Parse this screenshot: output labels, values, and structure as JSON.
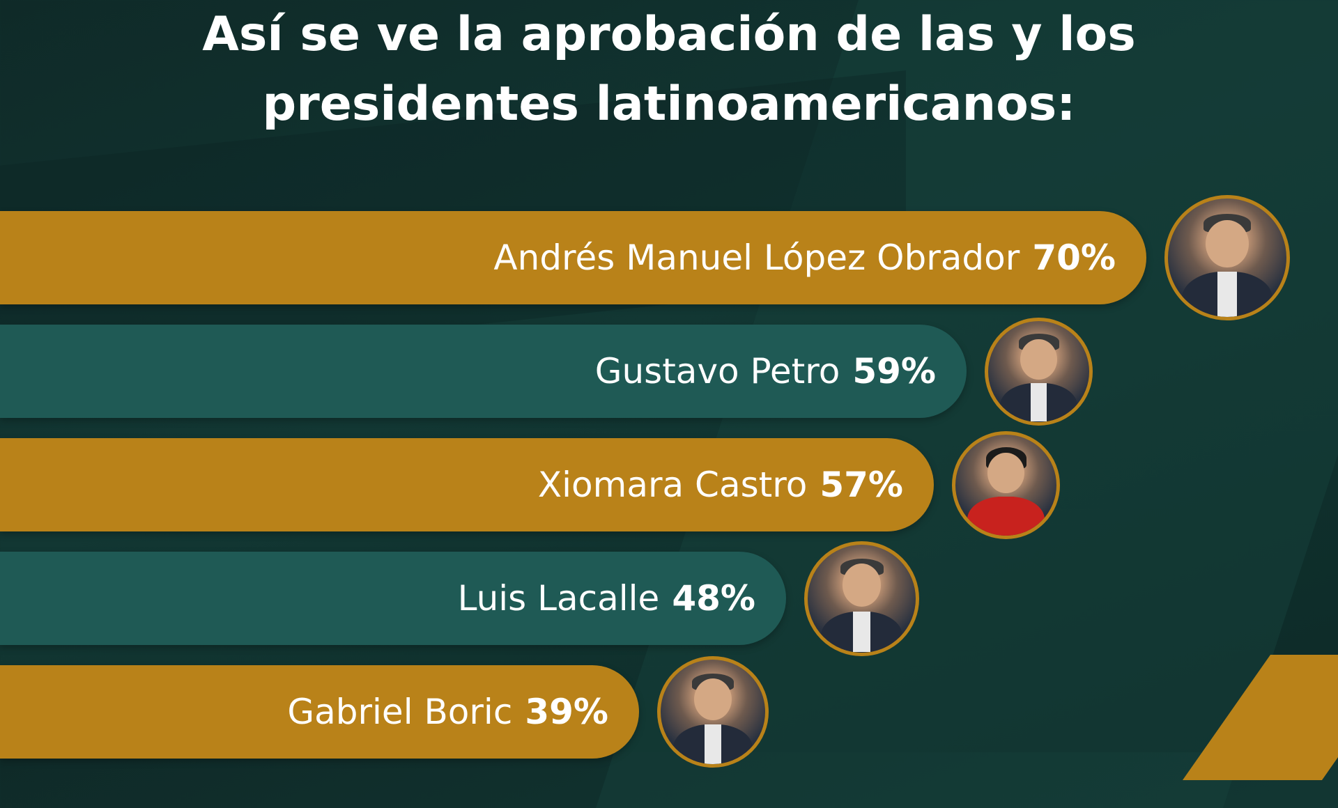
{
  "title": {
    "line1": "Así se ve la aprobación de las  y los",
    "line2": "presidentes latinoamericanos:"
  },
  "chart_data": {
    "type": "bar",
    "orientation": "horizontal",
    "title": "Así se ve la aprobación de las  y los presidentes latinoamericanos:",
    "categories": [
      "Andrés Manuel López Obrador",
      "Gustavo Petro",
      "Xiomara Castro",
      "Luis Lacalle",
      "Gabriel Boric"
    ],
    "values": [
      70,
      59,
      57,
      48,
      39
    ],
    "labels": [
      "70%",
      "59%",
      "57%",
      "48%",
      "39%"
    ],
    "unit": "%",
    "colors": [
      "#b98219",
      "#1f5a55",
      "#b98219",
      "#1f5a55",
      "#b98219"
    ]
  }
}
